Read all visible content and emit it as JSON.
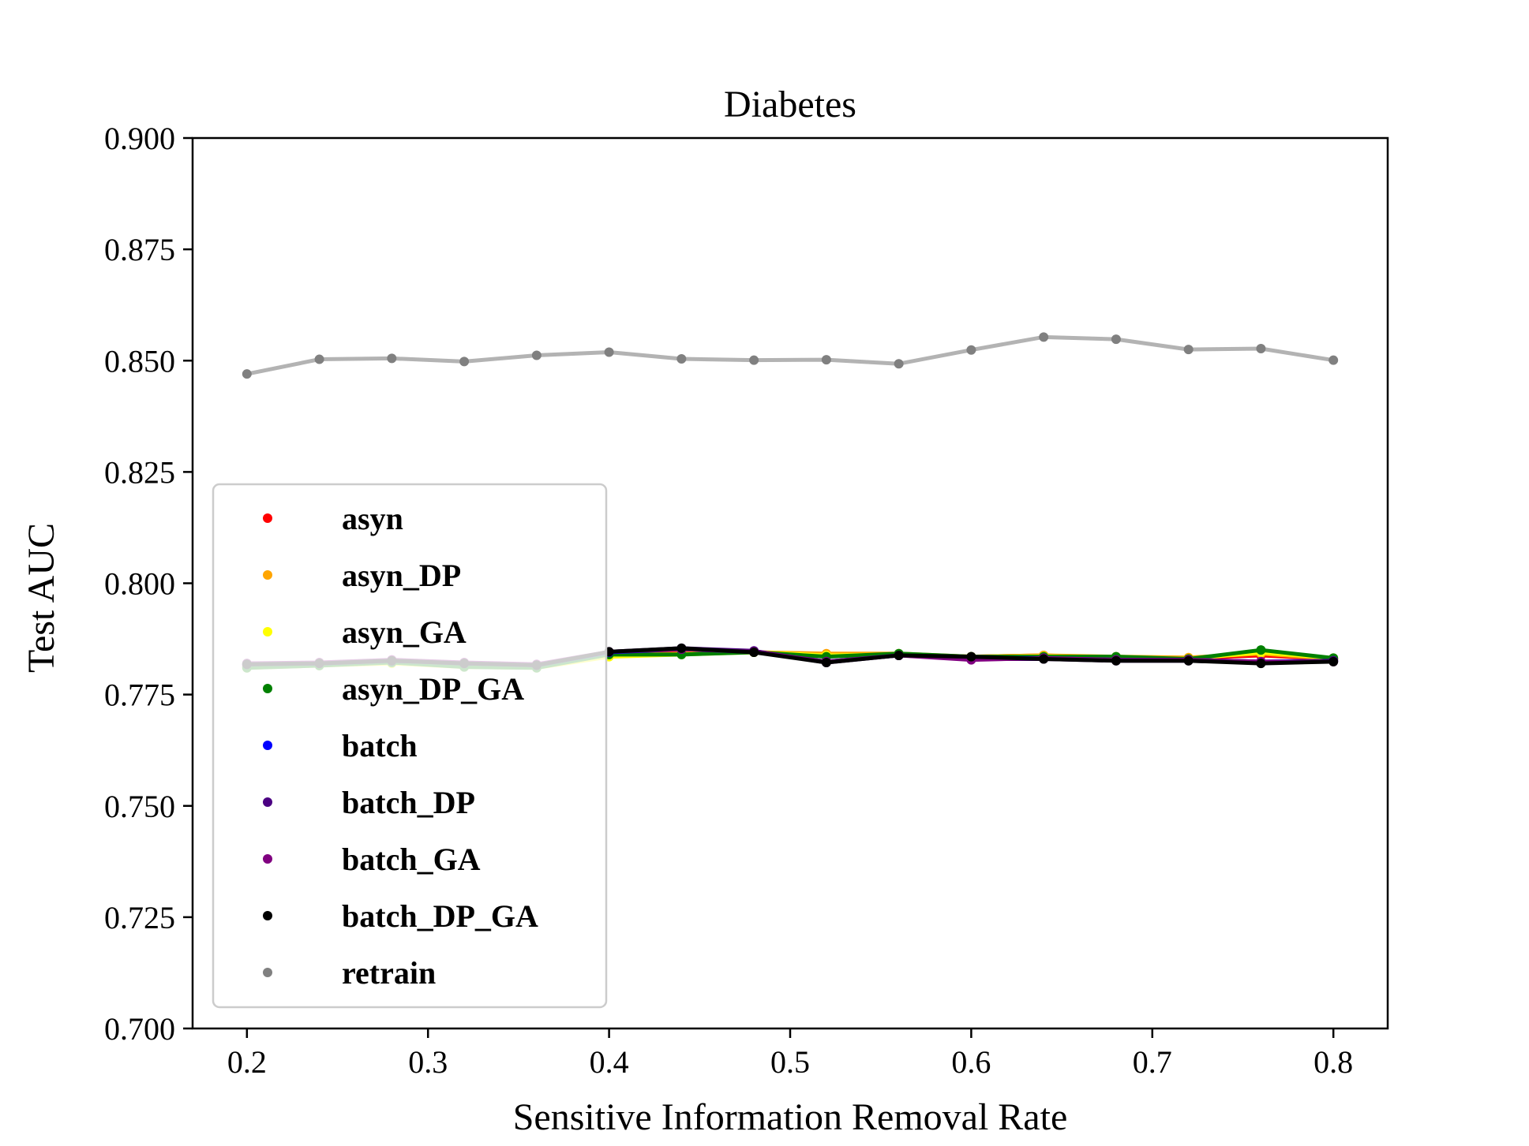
{
  "chart_data": {
    "type": "line",
    "title": "Diabetes",
    "xlabel": "Sensitive Information Removal Rate",
    "ylabel": "Test AUC",
    "xlim": [
      0.17,
      0.83
    ],
    "ylim": [
      0.7,
      0.9
    ],
    "xticks": [
      "0.2",
      "0.3",
      "0.4",
      "0.5",
      "0.6",
      "0.7",
      "0.8"
    ],
    "yticks": [
      "0.700",
      "0.725",
      "0.750",
      "0.775",
      "0.800",
      "0.825",
      "0.850",
      "0.875",
      "0.900"
    ],
    "grid": false,
    "legend_position": "center-left",
    "x": [
      0.2,
      0.24,
      0.28,
      0.32,
      0.36,
      0.4,
      0.44,
      0.48,
      0.52,
      0.56,
      0.6,
      0.64,
      0.68,
      0.72,
      0.76,
      0.8
    ],
    "series": [
      {
        "name": "asyn",
        "color": "#ff0000",
        "values": [
          0.7815,
          0.7818,
          0.7825,
          0.7818,
          0.7812,
          0.784,
          0.7848,
          0.7845,
          0.784,
          0.784,
          0.7835,
          0.7838,
          0.7832,
          0.7832,
          0.7838,
          0.783
        ]
      },
      {
        "name": "asyn_DP",
        "color": "#ffa500",
        "values": [
          0.7812,
          0.7816,
          0.7822,
          0.7815,
          0.7812,
          0.7838,
          0.7842,
          0.7845,
          0.7842,
          0.7842,
          0.7835,
          0.7838,
          0.7835,
          0.7833,
          0.7842,
          0.783
        ]
      },
      {
        "name": "asyn_GA",
        "color": "#ffff00",
        "values": [
          0.781,
          0.7815,
          0.782,
          0.7812,
          0.781,
          0.7835,
          0.784,
          0.7845,
          0.7838,
          0.784,
          0.7835,
          0.7836,
          0.7834,
          0.783,
          0.7845,
          0.7832
        ]
      },
      {
        "name": "asyn_DP_GA",
        "color": "#008000",
        "values": [
          0.781,
          0.7815,
          0.7822,
          0.7812,
          0.781,
          0.784,
          0.784,
          0.7845,
          0.7835,
          0.7842,
          0.7835,
          0.7835,
          0.7835,
          0.783,
          0.785,
          0.7832
        ]
      },
      {
        "name": "batch",
        "color": "#0000ff",
        "values": [
          0.7818,
          0.782,
          0.7826,
          0.782,
          0.7816,
          0.7845,
          0.7852,
          0.7846,
          0.7824,
          0.7838,
          0.7832,
          0.7832,
          0.7828,
          0.7828,
          0.7824,
          0.7826
        ]
      },
      {
        "name": "batch_DP",
        "color": "#4b0082",
        "values": [
          0.7818,
          0.782,
          0.7826,
          0.782,
          0.7816,
          0.7846,
          0.7854,
          0.7848,
          0.7822,
          0.7838,
          0.783,
          0.783,
          0.7826,
          0.7826,
          0.7822,
          0.7826
        ]
      },
      {
        "name": "batch_GA",
        "color": "#800080",
        "values": [
          0.782,
          0.7822,
          0.7828,
          0.7822,
          0.7818,
          0.7846,
          0.7852,
          0.7846,
          0.7824,
          0.7838,
          0.7828,
          0.7832,
          0.7828,
          0.7828,
          0.7824,
          0.7824
        ]
      },
      {
        "name": "batch_DP_GA",
        "color": "#000000",
        "values": [
          0.7818,
          0.782,
          0.7826,
          0.782,
          0.7816,
          0.7846,
          0.7854,
          0.7845,
          0.7822,
          0.7838,
          0.7835,
          0.783,
          0.7826,
          0.7826,
          0.782,
          0.7824
        ]
      },
      {
        "name": "retrain",
        "color": "#808080",
        "values": [
          0.847,
          0.8503,
          0.8505,
          0.8498,
          0.8512,
          0.8519,
          0.8504,
          0.8501,
          0.8502,
          0.8493,
          0.8524,
          0.8553,
          0.8548,
          0.8525,
          0.8527,
          0.8501
        ]
      }
    ]
  }
}
